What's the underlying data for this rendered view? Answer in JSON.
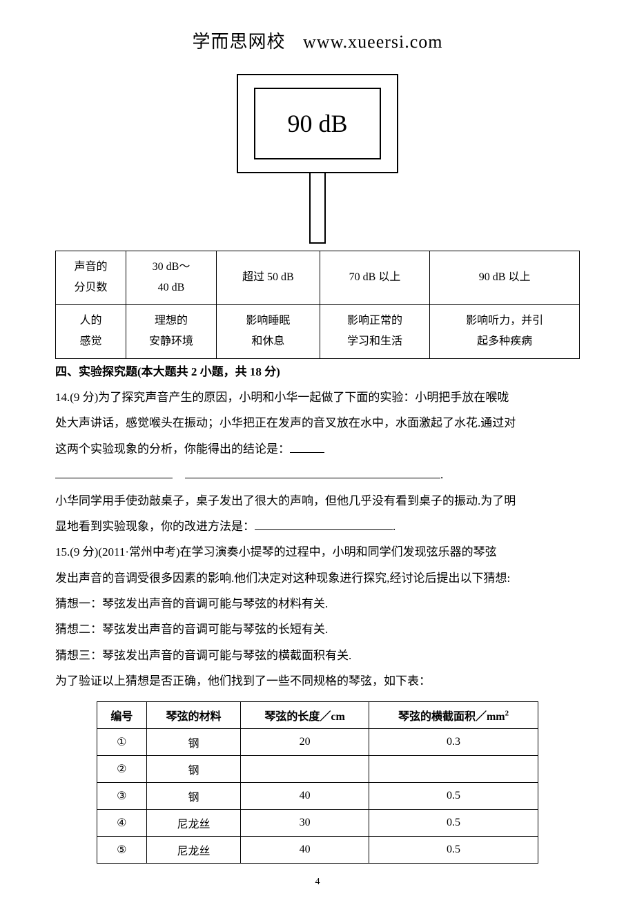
{
  "header": {
    "cn": "学而思网校",
    "url": "www.xueersi.com"
  },
  "figure": {
    "reading": "90 dB"
  },
  "dbtable": {
    "row1_label": "声音的\n分贝数",
    "row1_cells": [
      "30 dB～\n40 dB",
      "超过 50 dB",
      "70 dB 以上",
      "90 dB 以上"
    ],
    "row2_label": "人的\n感觉",
    "row2_cells": [
      "理想的\n安静环境",
      "影响睡眠\n和休息",
      "影响正常的\n学习和生活",
      "影响听力，并引\n起多种疾病"
    ]
  },
  "section4_title": "四、实验探究题(本大题共 2 小题，共 18 分)",
  "q14": {
    "line1": "14.(9 分)为了探究声音产生的原因，小明和小华一起做了下面的实验：小明把手放在喉咙",
    "line2": "处大声讲话，感觉喉头在振动；小华把正在发声的音叉放在水中，水面激起了水花.通过对",
    "line3_prefix": "这两个实验现象的分析，你能得出的结论是：",
    "line5": "小华同学用手使劲敲桌子，桌子发出了很大的声响，但他几乎没有看到桌子的振动.为了明",
    "line6_prefix": "显地看到实验现象，你的改进方法是："
  },
  "q15": {
    "line1": "15.(9 分)(2011·常州中考)在学习演奏小提琴的过程中，小明和同学们发现弦乐器的琴弦",
    "line2": "发出声音的音调受很多因素的影响.他们决定对这种现象进行探究,经讨论后提出以下猜想:",
    "g1": "猜想一：琴弦发出声音的音调可能与琴弦的材料有关.",
    "g2": "猜想二：琴弦发出声音的音调可能与琴弦的长短有关.",
    "g3": "猜想三：琴弦发出声音的音调可能与琴弦的横截面积有关.",
    "lead": "为了验证以上猜想是否正确，他们找到了一些不同规格的琴弦，如下表："
  },
  "spec_table": {
    "headers": [
      "编号",
      "琴弦的材料",
      "琴弦的长度／cm",
      "琴弦的横截面积／mm"
    ],
    "rows": [
      [
        "①",
        "钢",
        "20",
        "0.3"
      ],
      [
        "②",
        "钢",
        "",
        ""
      ],
      [
        "③",
        "钢",
        "40",
        "0.5"
      ],
      [
        "④",
        "尼龙丝",
        "30",
        "0.5"
      ],
      [
        "⑤",
        "尼龙丝",
        "40",
        "0.5"
      ]
    ]
  },
  "pagenum": "4"
}
